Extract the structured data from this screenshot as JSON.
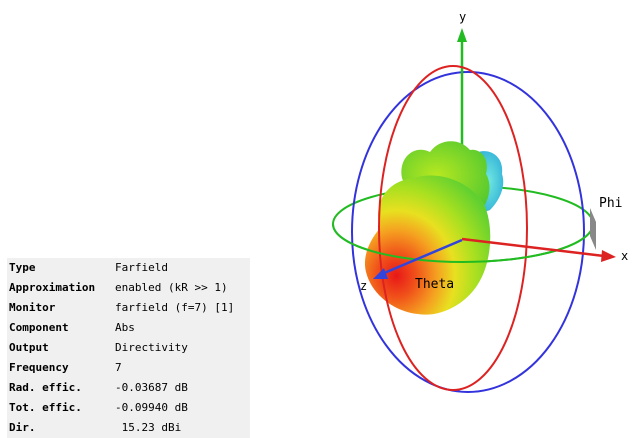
{
  "axes": {
    "x_label": "x",
    "y_label": "y",
    "z_label": "z",
    "theta_label": "Theta",
    "phi_label": "Phi"
  },
  "colors": {
    "x_axis": "#dd2222",
    "y_axis": "#22bb22",
    "z_axis": "#3344dd",
    "ring_blue": "#3333dd",
    "ring_red": "#dd2222",
    "ring_green": "#22bb22",
    "info_bg": "#f0f0f0"
  },
  "info": [
    {
      "key": "Type",
      "value": "Farfield"
    },
    {
      "key": "Approximation",
      "value": "enabled (kR >> 1)"
    },
    {
      "key": "Monitor",
      "value": "farfield (f=7) [1]"
    },
    {
      "key": "Component",
      "value": "Abs"
    },
    {
      "key": "Output",
      "value": "Directivity"
    },
    {
      "key": "Frequency",
      "value": "7"
    },
    {
      "key": "Rad. effic.",
      "value": "-0.03687 dB"
    },
    {
      "key": "Tot. effic.",
      "value": "-0.09940 dB"
    },
    {
      "key": "Dir.",
      "value": " 15.23 dBi"
    }
  ]
}
